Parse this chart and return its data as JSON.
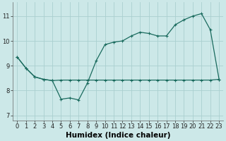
{
  "xlabel": "Humidex (Indice chaleur)",
  "background_color": "#cce8e8",
  "grid_color": "#aacfcf",
  "line_color": "#1a6b5e",
  "marker": "+",
  "xlim": [
    -0.5,
    23.5
  ],
  "ylim": [
    6.8,
    11.55
  ],
  "yticks": [
    7,
    8,
    9,
    10,
    11
  ],
  "xticks": [
    0,
    1,
    2,
    3,
    4,
    5,
    6,
    7,
    8,
    9,
    10,
    11,
    12,
    13,
    14,
    15,
    16,
    17,
    18,
    19,
    20,
    21,
    22,
    23
  ],
  "series1_x": [
    0,
    1,
    2,
    3,
    4,
    5,
    6,
    7,
    8,
    9,
    10,
    11,
    12,
    13,
    14,
    15,
    16,
    17,
    18,
    19,
    20,
    21,
    22,
    23
  ],
  "series1_y": [
    9.35,
    8.9,
    8.55,
    8.45,
    8.4,
    7.65,
    7.7,
    7.62,
    8.3,
    9.2,
    9.85,
    9.95,
    10.0,
    10.2,
    10.35,
    10.3,
    10.2,
    10.2,
    10.65,
    10.85,
    11.0,
    11.1,
    10.45,
    8.45
  ],
  "series2_x": [
    0,
    1,
    2,
    3,
    4,
    5,
    6,
    7,
    8,
    9,
    10,
    11,
    12,
    13,
    14,
    15,
    16,
    17,
    18,
    19,
    20,
    21,
    22,
    23
  ],
  "series2_y": [
    9.35,
    8.9,
    8.55,
    8.45,
    8.4,
    8.42,
    8.42,
    8.42,
    8.42,
    8.42,
    8.42,
    8.42,
    8.42,
    8.42,
    8.42,
    8.42,
    8.42,
    8.42,
    8.42,
    8.42,
    8.42,
    8.42,
    8.42,
    8.45
  ],
  "tick_fontsize": 6,
  "label_fontsize": 7.5,
  "linewidth": 0.9,
  "markersize": 3.5,
  "markeredgewidth": 0.8
}
